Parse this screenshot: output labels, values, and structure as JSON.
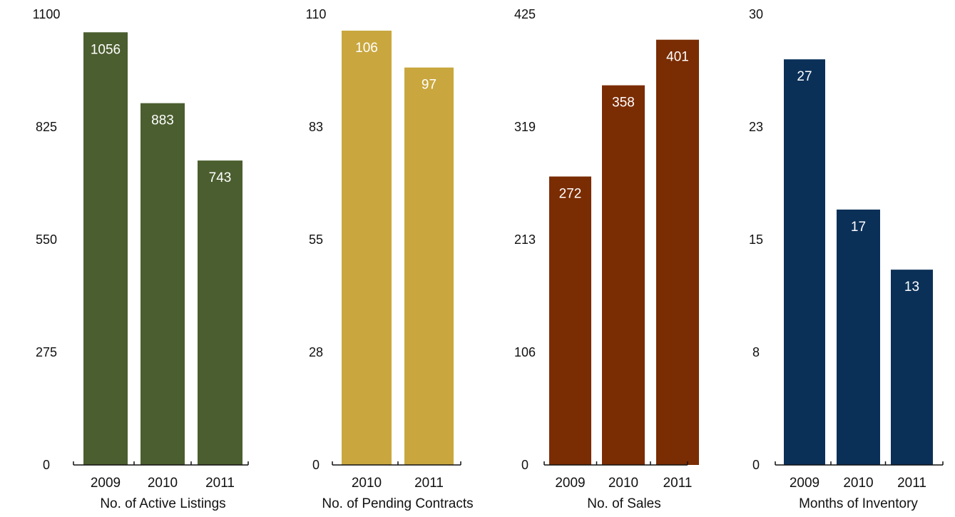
{
  "chart_data": [
    {
      "type": "bar",
      "xlabel": "No. of Active Listings",
      "categories": [
        "2009",
        "2010",
        "2011"
      ],
      "values": [
        1056,
        883,
        743
      ],
      "ylim": [
        0,
        1100
      ],
      "yticks": [
        "0",
        "275",
        "550",
        "825",
        "1100"
      ],
      "color": "#4b5e2f",
      "legend": "none",
      "grid": false
    },
    {
      "type": "bar",
      "xlabel": "No. of Pending Contracts",
      "categories": [
        "2010",
        "2011"
      ],
      "values": [
        106,
        97
      ],
      "ylim": [
        0,
        110
      ],
      "yticks": [
        "0",
        "28",
        "55",
        "83",
        "110"
      ],
      "color": "#c9a73e",
      "legend": "none",
      "grid": false
    },
    {
      "type": "bar",
      "xlabel": "No. of Sales",
      "categories": [
        "2009",
        "2010",
        "2011"
      ],
      "values": [
        272,
        358,
        401
      ],
      "ylim": [
        0,
        425
      ],
      "yticks": [
        "0",
        "106",
        "213",
        "319",
        "425"
      ],
      "color": "#7a2c02",
      "legend": "none",
      "grid": false
    },
    {
      "type": "bar",
      "xlabel": "Months of Inventory",
      "categories": [
        "2009",
        "2010",
        "2011"
      ],
      "values": [
        27,
        17,
        13
      ],
      "ylim": [
        0,
        30
      ],
      "yticks": [
        "0",
        "8",
        "15",
        "23",
        "30"
      ],
      "color": "#0b3058",
      "legend": "none",
      "grid": false
    }
  ]
}
